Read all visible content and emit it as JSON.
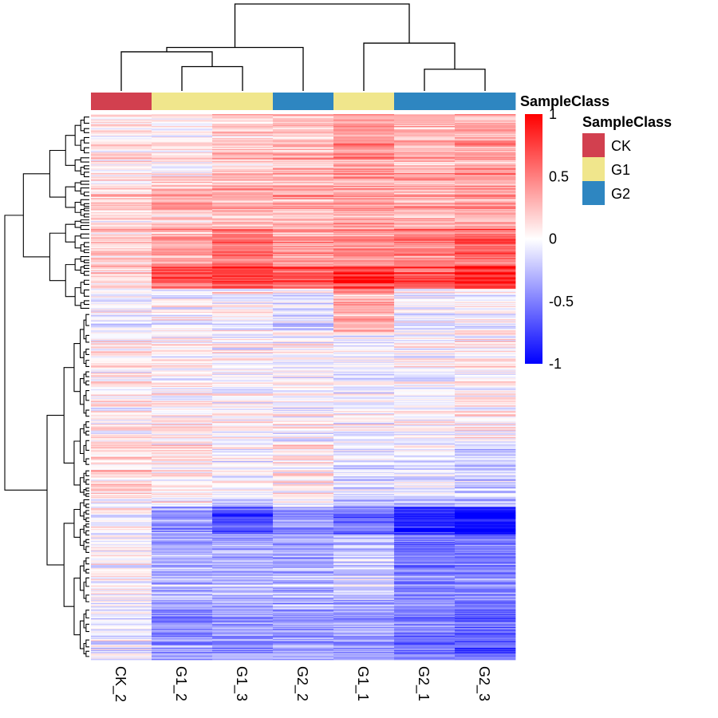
{
  "chart_data": {
    "type": "heatmap",
    "title": "",
    "xlabel": "",
    "ylabel": "",
    "columns": [
      "CK_2",
      "G1_2",
      "G1_3",
      "G2_2",
      "G1_1",
      "G2_1",
      "G2_3"
    ],
    "column_classes": [
      "CK",
      "G1",
      "G1",
      "G2",
      "G1",
      "G2",
      "G2"
    ],
    "annotation": {
      "name": "SampleClass",
      "legend_title": "SampleClass",
      "classes": [
        {
          "name": "CK",
          "color": "#D2404F"
        },
        {
          "name": "G1",
          "color": "#F0E68C"
        },
        {
          "name": "G2",
          "color": "#2E86C1"
        }
      ]
    },
    "color_scale": {
      "min": -1,
      "max": 1,
      "ticks": [
        "1",
        "0.5",
        "0",
        "-0.5",
        "-1"
      ],
      "colors": {
        "low": "#0000FF",
        "mid": "#FFFFFF",
        "high": "#FF0000"
      }
    },
    "row_profile": {
      "description_of_blocks": "mean values per block of rows, top to bottom",
      "blocks": [
        {
          "rows": 60,
          "values": [
            0.1,
            0.05,
            0.2,
            0.25,
            0.4,
            0.3,
            0.35
          ]
        },
        {
          "rows": 45,
          "values": [
            0.15,
            0.25,
            0.3,
            0.3,
            0.35,
            0.3,
            0.35
          ]
        },
        {
          "rows": 35,
          "values": [
            0.2,
            0.35,
            0.55,
            0.4,
            0.45,
            0.5,
            0.6
          ]
        },
        {
          "rows": 20,
          "values": [
            0.2,
            0.7,
            0.8,
            0.65,
            0.85,
            0.7,
            0.85
          ]
        },
        {
          "rows": 40,
          "values": [
            -0.05,
            -0.05,
            0.0,
            -0.15,
            0.3,
            -0.1,
            -0.05
          ]
        },
        {
          "rows": 100,
          "values": [
            0.05,
            0.05,
            0.0,
            0.0,
            -0.05,
            0.0,
            0.05
          ]
        },
        {
          "rows": 60,
          "values": [
            0.1,
            0.05,
            -0.05,
            0.05,
            -0.15,
            -0.15,
            -0.2
          ]
        },
        {
          "rows": 25,
          "values": [
            0.0,
            -0.4,
            -0.7,
            -0.4,
            -0.6,
            -0.85,
            -0.95
          ]
        },
        {
          "rows": 60,
          "values": [
            0.0,
            -0.3,
            -0.3,
            -0.3,
            -0.2,
            -0.5,
            -0.5
          ]
        },
        {
          "rows": 55,
          "values": [
            -0.05,
            -0.4,
            -0.4,
            -0.35,
            -0.35,
            -0.5,
            -0.6
          ]
        }
      ]
    },
    "column_dendrogram": {
      "description": "merges by column index; heights relative 0-1",
      "merges": [
        {
          "left": [
            1
          ],
          "right": [
            2
          ],
          "height": 0.28
        },
        {
          "left": [
            5
          ],
          "right": [
            6
          ],
          "height": 0.25
        },
        {
          "left": [
            0
          ],
          "right": [
            1,
            2
          ],
          "height": 0.45
        },
        {
          "left": [
            4
          ],
          "right": [
            5,
            6
          ],
          "height": 0.55
        },
        {
          "left": [
            0,
            1,
            2
          ],
          "right": [
            3
          ],
          "height": 0.5
        },
        {
          "left": [
            0,
            1,
            2,
            3
          ],
          "right": [
            4,
            5,
            6
          ],
          "height": 1.0
        }
      ]
    },
    "legend_placement": "right",
    "grid": false
  }
}
